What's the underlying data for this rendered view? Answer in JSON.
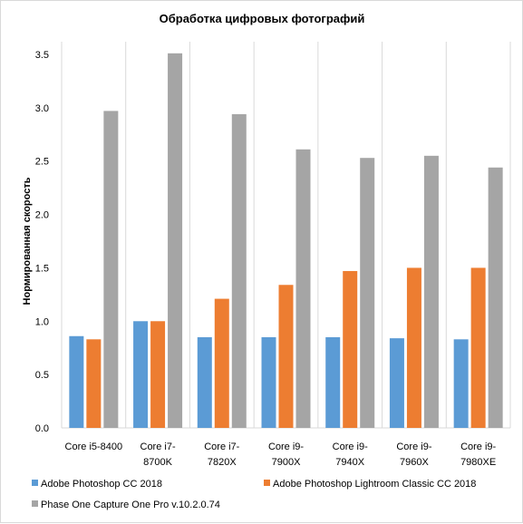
{
  "chart_data": {
    "type": "bar",
    "title": "Обработка цифровых фотографий",
    "xlabel": "",
    "ylabel": "Нормированная скорость",
    "ylim": [
      0,
      3.5
    ],
    "yticks": [
      "0.0",
      "0.5",
      "1.0",
      "1.5",
      "2.0",
      "2.5",
      "3.0",
      "3.5"
    ],
    "grid": "vertical lines between categories",
    "legend_position": "bottom",
    "categories": [
      [
        "Core i5-8400"
      ],
      [
        "Core i7-",
        "8700K"
      ],
      [
        "Core i7-",
        "7820X"
      ],
      [
        "Core i9-",
        "7900X"
      ],
      [
        "Core i9-",
        "7940X"
      ],
      [
        "Core i9-",
        "7960X"
      ],
      [
        "Core i9-",
        "7980XE"
      ]
    ],
    "series": [
      {
        "name": "Adobe Photoshop CC 2018",
        "color": "#5b9bd5",
        "values": [
          0.86,
          1.0,
          0.85,
          0.85,
          0.85,
          0.84,
          0.83
        ]
      },
      {
        "name": "Adobe Photoshop Lightroom Classic CC 2018",
        "color": "#ed7d31",
        "values": [
          0.83,
          1.0,
          1.21,
          1.34,
          1.47,
          1.5,
          1.5
        ]
      },
      {
        "name": "Phase One Capture One Pro v.10.2.0.74",
        "color": "#a5a5a5",
        "values": [
          2.97,
          3.51,
          2.94,
          2.61,
          2.53,
          2.55,
          2.44
        ]
      }
    ]
  }
}
